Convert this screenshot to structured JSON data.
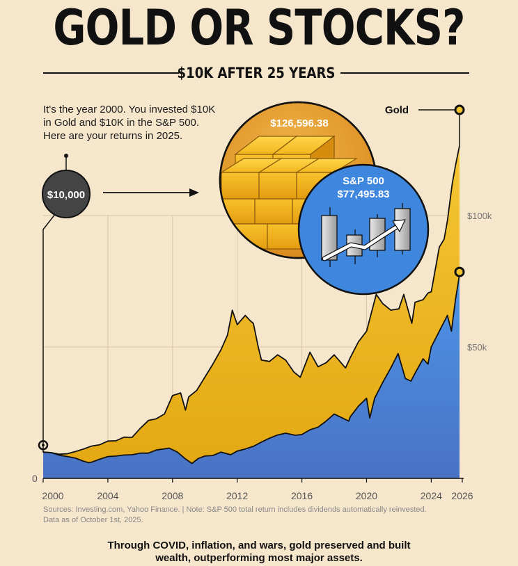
{
  "header": {
    "title": "GOLD OR STOCKS?",
    "subtitle": "$10K AFTER 25 YEARS"
  },
  "intro": {
    "line1": "It's the year 2000. You invested $10K",
    "line2": "in Gold and $10K in the S&P 500.",
    "line3": "Here are your returns in 2025."
  },
  "start_badge": {
    "label": "$10,000"
  },
  "gold_callout": {
    "label": "Gold",
    "value": "$126,596.38"
  },
  "sp_callout": {
    "label": "S&P 500",
    "value": "$77,495.83"
  },
  "colors": {
    "background": "#f6e6cc",
    "gold_top": "#f2c430",
    "gold_bottom": "#e0a412",
    "sp_top": "#4d93e6",
    "sp_bottom": "#4c76c7",
    "line": "#111111",
    "badge": "#444444"
  },
  "chart_data": {
    "type": "area",
    "title": "GOLD OR STOCKS?",
    "subtitle": "$10K AFTER 25 YEARS",
    "xlim": [
      2000,
      2026
    ],
    "ylim": [
      0,
      100000
    ],
    "x_ticks": [
      2000,
      2004,
      2008,
      2012,
      2016,
      2020,
      2024,
      2026
    ],
    "x_tick_labels": [
      "2000",
      "2004",
      "2008",
      "2012",
      "2016",
      "2020",
      "2024",
      "2026"
    ],
    "y_ticks": [
      0,
      50000,
      100000
    ],
    "y_tick_labels": [
      "0",
      "$50k",
      "$100k"
    ],
    "grid": true,
    "series": [
      {
        "name": "Gold",
        "final_value": 126596.38,
        "points": [
          [
            2000.0,
            10000
          ],
          [
            2000.5,
            9800
          ],
          [
            2001.0,
            9200
          ],
          [
            2001.5,
            9400
          ],
          [
            2002.0,
            10200
          ],
          [
            2002.5,
            11200
          ],
          [
            2003.0,
            12300
          ],
          [
            2003.5,
            12800
          ],
          [
            2004.0,
            14200
          ],
          [
            2004.5,
            14300
          ],
          [
            2005.0,
            15700
          ],
          [
            2005.5,
            15600
          ],
          [
            2006.0,
            19000
          ],
          [
            2006.5,
            22000
          ],
          [
            2007.0,
            22700
          ],
          [
            2007.5,
            24500
          ],
          [
            2008.0,
            31500
          ],
          [
            2008.5,
            32500
          ],
          [
            2008.8,
            26000
          ],
          [
            2009.0,
            31000
          ],
          [
            2009.5,
            33500
          ],
          [
            2010.0,
            38500
          ],
          [
            2010.5,
            43500
          ],
          [
            2011.0,
            49000
          ],
          [
            2011.4,
            54500
          ],
          [
            2011.7,
            64000
          ],
          [
            2012.0,
            58500
          ],
          [
            2012.5,
            62000
          ],
          [
            2012.8,
            60000
          ],
          [
            2013.0,
            59000
          ],
          [
            2013.3,
            50000
          ],
          [
            2013.5,
            45000
          ],
          [
            2014.0,
            44500
          ],
          [
            2014.5,
            47000
          ],
          [
            2015.0,
            45000
          ],
          [
            2015.5,
            40500
          ],
          [
            2015.9,
            38500
          ],
          [
            2016.5,
            48000
          ],
          [
            2017.0,
            42500
          ],
          [
            2017.5,
            44000
          ],
          [
            2018.0,
            47000
          ],
          [
            2018.7,
            42000
          ],
          [
            2019.0,
            46000
          ],
          [
            2019.5,
            52000
          ],
          [
            2020.0,
            56000
          ],
          [
            2020.6,
            70000
          ],
          [
            2021.0,
            66500
          ],
          [
            2021.5,
            64000
          ],
          [
            2022.0,
            64500
          ],
          [
            2022.3,
            70000
          ],
          [
            2022.8,
            59000
          ],
          [
            2023.0,
            67000
          ],
          [
            2023.5,
            68000
          ],
          [
            2023.8,
            70500
          ],
          [
            2024.0,
            71000
          ],
          [
            2024.5,
            88000
          ],
          [
            2024.8,
            91000
          ],
          [
            2025.0,
            98000
          ],
          [
            2025.3,
            112000
          ],
          [
            2025.5,
            119000
          ],
          [
            2025.75,
            126596.38
          ]
        ]
      },
      {
        "name": "S&P 500",
        "final_value": 77495.83,
        "points": [
          [
            2000.0,
            10000
          ],
          [
            2000.5,
            9800
          ],
          [
            2001.0,
            8800
          ],
          [
            2001.5,
            8300
          ],
          [
            2002.0,
            7700
          ],
          [
            2002.5,
            6500
          ],
          [
            2002.8,
            6000
          ],
          [
            2003.0,
            6200
          ],
          [
            2003.5,
            7300
          ],
          [
            2004.0,
            8300
          ],
          [
            2004.5,
            8500
          ],
          [
            2005.0,
            8900
          ],
          [
            2005.5,
            9000
          ],
          [
            2006.0,
            9600
          ],
          [
            2006.5,
            9600
          ],
          [
            2007.0,
            10800
          ],
          [
            2007.8,
            11500
          ],
          [
            2008.3,
            10000
          ],
          [
            2008.8,
            7400
          ],
          [
            2009.2,
            5700
          ],
          [
            2009.6,
            7600
          ],
          [
            2010.0,
            8500
          ],
          [
            2010.5,
            8700
          ],
          [
            2011.0,
            10000
          ],
          [
            2011.6,
            9000
          ],
          [
            2012.0,
            10400
          ],
          [
            2012.5,
            11200
          ],
          [
            2013.0,
            12200
          ],
          [
            2013.5,
            13800
          ],
          [
            2014.0,
            15300
          ],
          [
            2014.5,
            16500
          ],
          [
            2015.0,
            17200
          ],
          [
            2015.6,
            16400
          ],
          [
            2016.0,
            16700
          ],
          [
            2016.5,
            18500
          ],
          [
            2017.0,
            19500
          ],
          [
            2017.5,
            21800
          ],
          [
            2018.0,
            24500
          ],
          [
            2018.9,
            21800
          ],
          [
            2019.0,
            23500
          ],
          [
            2019.5,
            27500
          ],
          [
            2020.0,
            30500
          ],
          [
            2020.2,
            23000
          ],
          [
            2020.5,
            30500
          ],
          [
            2021.0,
            36500
          ],
          [
            2021.5,
            42000
          ],
          [
            2021.95,
            47500
          ],
          [
            2022.4,
            38000
          ],
          [
            2022.75,
            37000
          ],
          [
            2023.0,
            40000
          ],
          [
            2023.5,
            45500
          ],
          [
            2023.8,
            43500
          ],
          [
            2024.0,
            50000
          ],
          [
            2024.5,
            56000
          ],
          [
            2025.0,
            62000
          ],
          [
            2025.25,
            56000
          ],
          [
            2025.5,
            68000
          ],
          [
            2025.75,
            77495.83
          ]
        ]
      }
    ],
    "annotations": [
      "$10,000",
      "Gold",
      "$126,596.38",
      "S&P 500",
      "$77,495.83"
    ],
    "sources": "Sources: Investing.com, Yahoo Finance. | Note: S&P 500 total return includes dividends automatically reinvested. Data as of October 1st, 2025."
  },
  "notes": {
    "sources_line1": "Sources: Investing.com, Yahoo Finance. | Note: S&P 500 total return includes dividends automatically reinvested.",
    "sources_line2": "Data as of October 1st, 2025."
  },
  "footer": {
    "line1": "Through COVID, inflation, and wars, gold preserved and built",
    "line2": "wealth, outperforming most major assets."
  }
}
